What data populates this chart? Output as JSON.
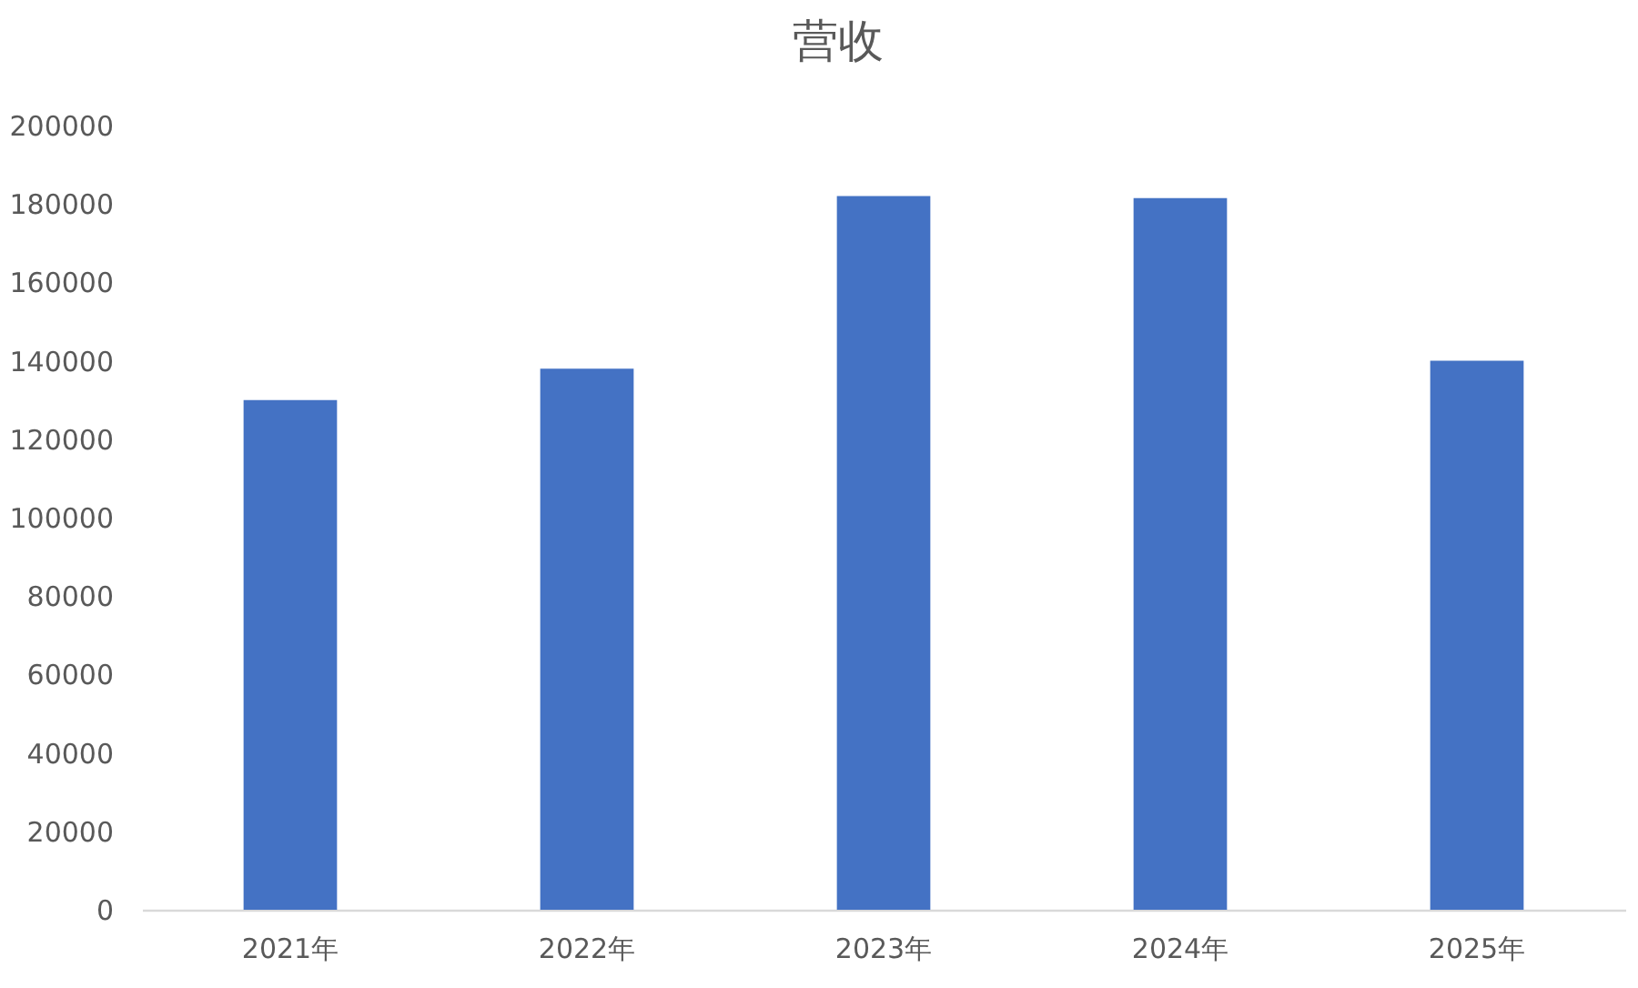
{
  "chart_data": {
    "type": "bar",
    "title": "营收",
    "categories": [
      "2021年",
      "2022年",
      "2023年",
      "2024年",
      "2025年"
    ],
    "values": [
      130000,
      138000,
      182000,
      181500,
      140000
    ],
    "color": "#4472c4",
    "ylim": [
      0,
      200000
    ],
    "yticks": [
      0,
      20000,
      40000,
      60000,
      80000,
      100000,
      120000,
      140000,
      160000,
      180000,
      200000
    ],
    "grid": false
  }
}
